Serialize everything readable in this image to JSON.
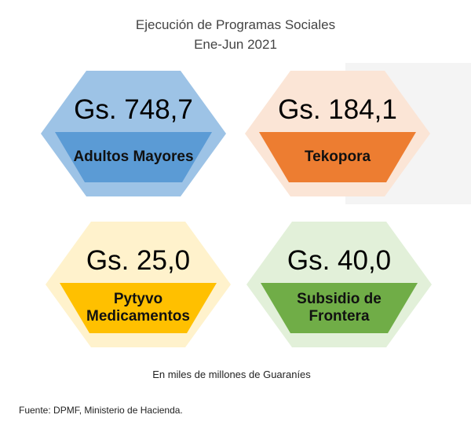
{
  "header": {
    "title": "Ejecución de Programas Sociales",
    "subtitle": "Ene-Jun 2021"
  },
  "items": [
    {
      "amount": "Gs. 748,7",
      "label": "Adultos Mayores",
      "color": "#5b9bd5",
      "light": "#9dc3e6"
    },
    {
      "amount": "Gs. 184,1",
      "label": "Tekopora",
      "color": "#ed7d31",
      "light": "#fbe5d6"
    },
    {
      "amount": "Gs. 25,0",
      "label": "Pytyvo Medicamentos",
      "color": "#ffc000",
      "light": "#fff2cc"
    },
    {
      "amount": "Gs. 40,0",
      "label": "Subsidio de Frontera",
      "color": "#70ad47",
      "light": "#e2f0d9"
    }
  ],
  "note": "En miles de millones de Guaraníes",
  "source": "Fuente: DPMF, Ministerio de Hacienda."
}
